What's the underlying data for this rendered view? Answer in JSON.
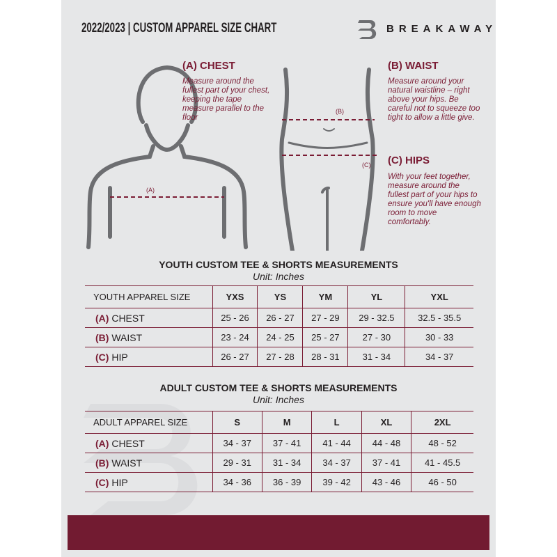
{
  "header": {
    "title": "2022/2023  |  CUSTOM APPAREL SIZE CHART",
    "brand": "BREAKAWAY"
  },
  "guide": {
    "chest": {
      "title": "(A) CHEST",
      "text": "Measure around the fullest part of your chest, keeping the tape measure parallel to the floor",
      "marker": "(A)"
    },
    "waist": {
      "title": "(B) WAIST",
      "text": "Measure around your natural waistline – right above your hips. Be careful not to squeeze too tight to allow a little give.",
      "marker": "(B)"
    },
    "hips": {
      "title": "(C) HIPS",
      "text": "With your feet together, measure around the fullest part of your hips to ensure you'll have enough room to move comfortably.",
      "marker": "(C)"
    }
  },
  "youth": {
    "title": "YOUTH CUSTOM TEE & SHORTS MEASUREMENTS",
    "unit": "Unit: Inches",
    "corner": "YOUTH APPAREL SIZE",
    "sizes": [
      "YXS",
      "YS",
      "YM",
      "YL",
      "YXL"
    ],
    "rows": [
      {
        "letter": "(A)",
        "name": "CHEST",
        "values": [
          "25 - 26",
          "26 - 27",
          "27 - 29",
          "29 - 32.5",
          "32.5 - 35.5"
        ]
      },
      {
        "letter": "(B)",
        "name": "WAIST",
        "values": [
          "23 - 24",
          "24 - 25",
          "25 - 27",
          "27 - 30",
          "30 - 33"
        ]
      },
      {
        "letter": "(C)",
        "name": "HIP",
        "values": [
          "26 - 27",
          "27 - 28",
          "28 - 31",
          "31 - 34",
          "34 - 37"
        ]
      }
    ]
  },
  "adult": {
    "title": "ADULT CUSTOM TEE & SHORTS MEASUREMENTS",
    "unit": "Unit: Inches",
    "corner": "ADULT APPAREL SIZE",
    "sizes": [
      "S",
      "M",
      "L",
      "XL",
      "2XL"
    ],
    "rows": [
      {
        "letter": "(A)",
        "name": "CHEST",
        "values": [
          "34 - 37",
          "37 - 41",
          "41 - 44",
          "44 - 48",
          "48 - 52"
        ]
      },
      {
        "letter": "(B)",
        "name": "WAIST",
        "values": [
          "29 - 31",
          "31 - 34",
          "34 - 37",
          "37 - 41",
          "41 - 45.5"
        ]
      },
      {
        "letter": "(C)",
        "name": "HIP",
        "values": [
          "34 - 36",
          "36 - 39",
          "39 - 42",
          "43 - 46",
          "46 - 50"
        ]
      }
    ]
  },
  "colors": {
    "accent": "#7a1c34",
    "band": "#721b31",
    "panel": "#e6e7e8"
  }
}
